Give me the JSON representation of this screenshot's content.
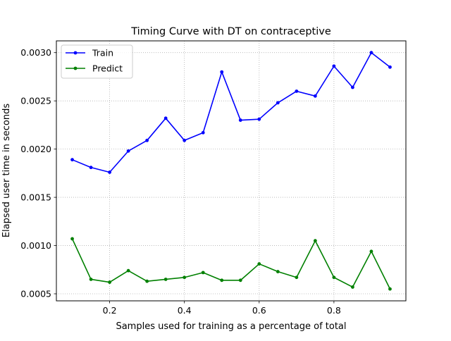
{
  "chart_data": {
    "type": "line",
    "title": "Timing Curve with DT on contraceptive",
    "xlabel": "Samples used for training as a percentage of total",
    "ylabel": "Elapsed user time in seconds",
    "xlim": [
      0.0575,
      0.9925
    ],
    "ylim": [
      0.000427,
      0.003122
    ],
    "xticks": [
      {
        "value": 0.2,
        "label": "0.2"
      },
      {
        "value": 0.4,
        "label": "0.4"
      },
      {
        "value": 0.6,
        "label": "0.6"
      },
      {
        "value": 0.8,
        "label": "0.8"
      }
    ],
    "yticks": [
      {
        "value": 0.0005,
        "label": "0.0005"
      },
      {
        "value": 0.001,
        "label": "0.0010"
      },
      {
        "value": 0.0015,
        "label": "0.0015"
      },
      {
        "value": 0.002,
        "label": "0.0020"
      },
      {
        "value": 0.0025,
        "label": "0.0025"
      },
      {
        "value": 0.003,
        "label": "0.0030"
      }
    ],
    "grid": true,
    "legend_position": "upper-left",
    "x": [
      0.1,
      0.15,
      0.2,
      0.25,
      0.3,
      0.35,
      0.4,
      0.45,
      0.5,
      0.55,
      0.6,
      0.65,
      0.7,
      0.75,
      0.8,
      0.85,
      0.9,
      0.95
    ],
    "series": [
      {
        "name": "Train",
        "color": "#0000ff",
        "values": [
          0.00189,
          0.00181,
          0.00176,
          0.00198,
          0.00209,
          0.00232,
          0.00209,
          0.00217,
          0.0028,
          0.0023,
          0.00231,
          0.00248,
          0.0026,
          0.00255,
          0.00286,
          0.00264,
          0.003,
          0.00285
        ]
      },
      {
        "name": "Predict",
        "color": "#008000",
        "values": [
          0.00107,
          0.00065,
          0.00062,
          0.00074,
          0.00063,
          0.00065,
          0.00067,
          0.00072,
          0.00064,
          0.00064,
          0.00081,
          0.00073,
          0.00067,
          0.00105,
          0.00067,
          0.00057,
          0.00094,
          0.00055
        ]
      }
    ]
  }
}
